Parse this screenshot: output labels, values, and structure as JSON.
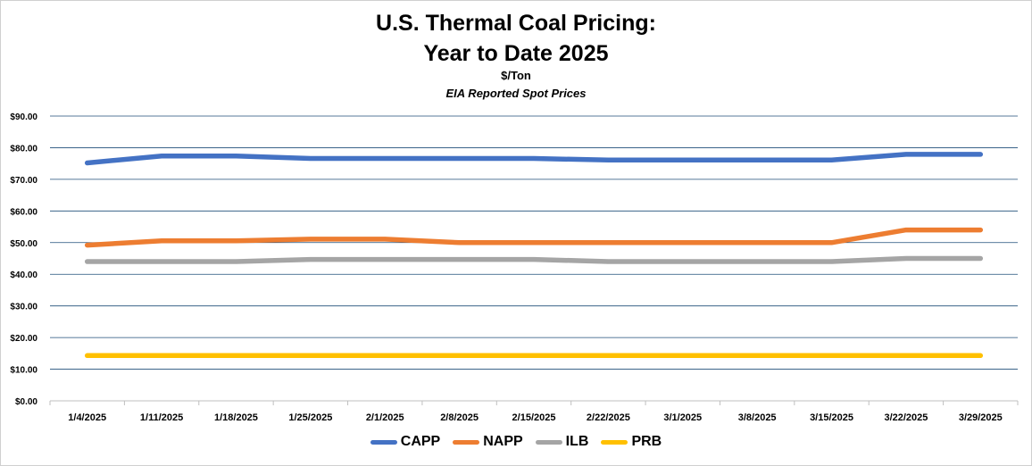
{
  "chart_data": {
    "type": "line",
    "title": "U.S. Thermal Coal Pricing:",
    "title_line2": "Year to Date 2025",
    "subtitle": "$/Ton",
    "subtitle2": "EIA Reported Spot Prices",
    "categories": [
      "1/4/2025",
      "1/11/2025",
      "1/18/2025",
      "1/25/2025",
      "2/1/2025",
      "2/8/2025",
      "2/15/2025",
      "2/22/2025",
      "3/1/2025",
      "3/8/2025",
      "3/15/2025",
      "3/22/2025",
      "3/29/2025"
    ],
    "y_ticks": [
      "$0.00",
      "$10.00",
      "$20.00",
      "$30.00",
      "$40.00",
      "$50.00",
      "$60.00",
      "$70.00",
      "$80.00",
      "$90.00"
    ],
    "ylim": [
      0,
      90
    ],
    "grid": true,
    "legend_position": "bottom",
    "series": [
      {
        "name": "CAPP",
        "color": "#4472C4",
        "values": [
          75.2,
          77.4,
          77.4,
          76.6,
          76.6,
          76.6,
          76.6,
          76.1,
          76.1,
          76.1,
          76.1,
          77.9,
          77.9
        ]
      },
      {
        "name": "NAPP",
        "color": "#ED7D31",
        "values": [
          49.2,
          50.6,
          50.6,
          51.1,
          51.1,
          50.0,
          50.0,
          50.0,
          50.0,
          50.0,
          50.0,
          54.0,
          54.0
        ]
      },
      {
        "name": "ILB",
        "color": "#A5A5A5",
        "values": [
          44.0,
          44.0,
          44.0,
          44.7,
          44.7,
          44.7,
          44.7,
          44.0,
          44.0,
          44.0,
          44.0,
          45.0,
          45.0
        ]
      },
      {
        "name": "PRB",
        "color": "#FFC000",
        "values": [
          14.3,
          14.3,
          14.3,
          14.3,
          14.3,
          14.3,
          14.3,
          14.3,
          14.3,
          14.3,
          14.3,
          14.3,
          14.3
        ]
      }
    ]
  }
}
